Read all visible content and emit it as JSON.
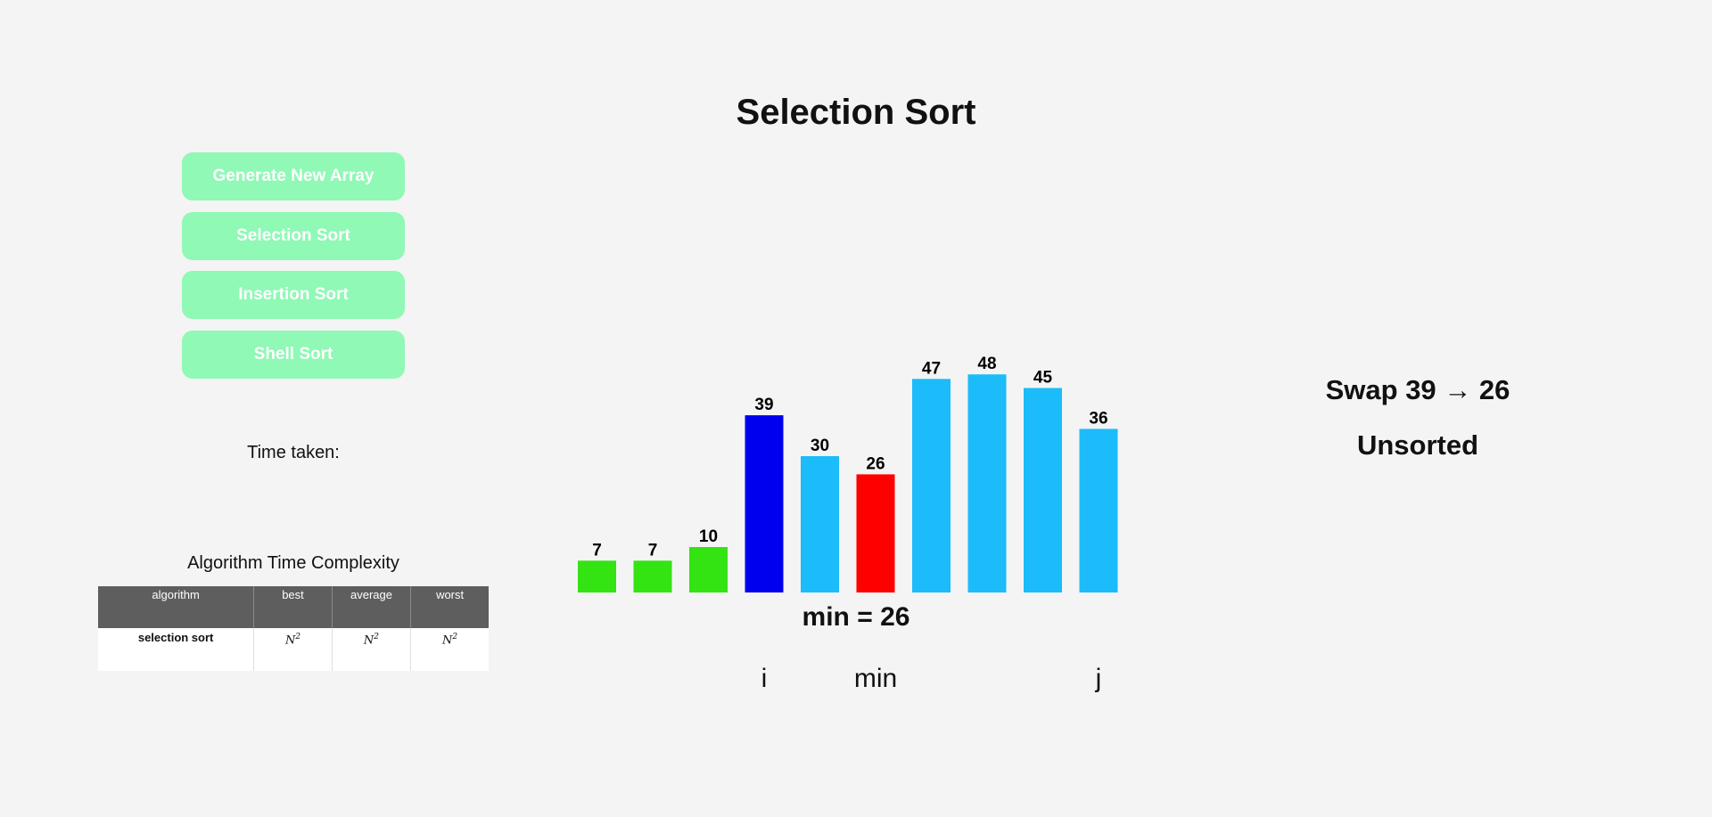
{
  "title": "Selection Sort",
  "buttons": {
    "generate": "Generate New Array",
    "selection": "Selection Sort",
    "insertion": "Insertion Sort",
    "shell": "Shell Sort"
  },
  "time_taken_label": "Time taken:",
  "complexity": {
    "title": "Algorithm Time Complexity",
    "headers": [
      "algorithm",
      "best",
      "average",
      "worst"
    ],
    "row": {
      "algorithm": "selection sort",
      "best": "N",
      "average": "N",
      "worst": "N",
      "exponent": "2"
    }
  },
  "colors": {
    "sorted": "#33e312",
    "current_i": "#0000ee",
    "min": "#ff0000",
    "unsorted": "#1bbcf9",
    "button_bg": "#8ff9b5"
  },
  "chart_data": {
    "type": "bar",
    "values": [
      7,
      7,
      10,
      39,
      30,
      26,
      47,
      48,
      45,
      36
    ],
    "states": [
      "sorted",
      "sorted",
      "sorted",
      "current_i",
      "unsorted",
      "min",
      "unsorted",
      "unsorted",
      "unsorted",
      "unsorted"
    ],
    "data_labels": true,
    "grid": false
  },
  "min_label": "min = 26",
  "pointers": {
    "i": "i",
    "min": "min",
    "j": "j"
  },
  "pointer_positions": {
    "i": 3,
    "min": 5,
    "j": 9
  },
  "status": {
    "swap": "Swap 39 → 26",
    "state": "Unsorted"
  }
}
